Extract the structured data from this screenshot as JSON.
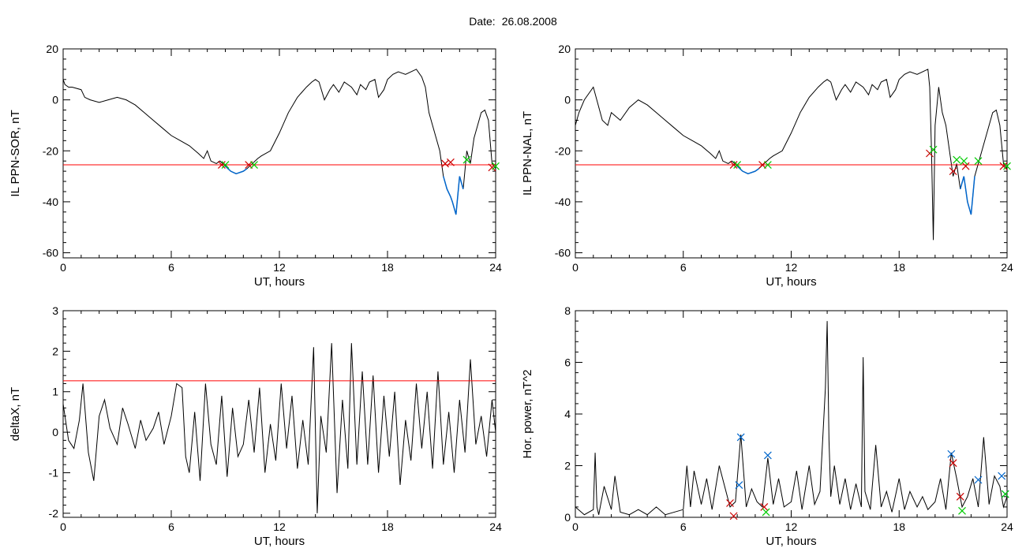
{
  "header": {
    "date_label": "Date:",
    "date_value": "26.08.2008"
  },
  "colors": {
    "signal": "#000000",
    "threshold": "#ff0000",
    "below_threshold": "#0066cc",
    "marker_start": "#cc0000",
    "marker_end": "#00cc00",
    "marker_peak": "#0066cc"
  },
  "chart_data": [
    {
      "type": "line",
      "xlabel": "UT, hours",
      "ylabel": "IL PPN-SOR, nT",
      "xlim": [
        0,
        24
      ],
      "ylim": [
        -62,
        20
      ],
      "xticks": [
        0,
        6,
        12,
        18,
        24
      ],
      "yticks": [
        -60,
        -40,
        -20,
        0,
        20
      ],
      "threshold": -25.5,
      "series": [
        {
          "x": [
            0,
            0.1,
            0.3,
            0.5,
            1.0,
            1.2,
            1.5,
            2.0,
            2.5,
            3.0,
            3.5,
            4.0,
            4.5,
            5.0,
            5.5,
            6.0,
            6.5,
            7.0,
            7.5,
            7.8,
            8.0,
            8.2,
            8.5,
            8.7,
            9.0,
            9.3,
            9.6,
            10.0,
            10.2,
            10.5,
            10.8,
            11.0,
            11.5,
            12.0,
            12.5,
            13.0,
            13.5,
            13.8,
            14.0,
            14.2,
            14.5,
            14.8,
            15.0,
            15.3,
            15.6,
            16.0,
            16.3,
            16.5,
            16.8,
            17.0,
            17.3,
            17.5,
            17.8,
            18.0,
            18.3,
            18.6,
            19.0,
            19.3,
            19.6,
            19.9,
            20.1,
            20.3,
            20.5,
            20.7,
            20.9,
            21.1,
            21.3,
            21.5,
            21.6,
            21.8,
            22.0,
            22.2,
            22.4,
            22.6,
            22.8,
            23.0,
            23.2,
            23.4,
            23.6,
            23.8,
            24.0
          ],
          "y": [
            8,
            6,
            5,
            5,
            4,
            1,
            0,
            -1,
            0,
            1,
            0,
            -2,
            -5,
            -8,
            -11,
            -14,
            -16,
            -18,
            -21,
            -23,
            -20,
            -24,
            -25,
            -24,
            -26,
            -28,
            -29,
            -28,
            -27,
            -25,
            -23,
            -22,
            -20,
            -13,
            -5,
            1,
            5,
            7,
            8,
            7,
            0,
            4,
            6,
            3,
            7,
            5,
            2,
            6,
            4,
            7,
            8,
            1,
            4,
            8,
            10,
            11,
            10,
            11,
            12,
            9,
            5,
            -5,
            -10,
            -15,
            -20,
            -30,
            -35,
            -38,
            -40,
            -45,
            -30,
            -35,
            -20,
            -25,
            -15,
            -10,
            -5,
            -4,
            -8,
            -25,
            -27
          ]
        }
      ],
      "markers": {
        "start": [
          {
            "x": 8.8,
            "y": -25.5
          },
          {
            "x": 10.3,
            "y": -25.5
          },
          {
            "x": 21.2,
            "y": -25
          },
          {
            "x": 21.5,
            "y": -24.5
          },
          {
            "x": 23.8,
            "y": -26.5
          }
        ],
        "end": [
          {
            "x": 9.0,
            "y": -25.5
          },
          {
            "x": 10.6,
            "y": -25.5
          },
          {
            "x": 22.4,
            "y": -23.5
          },
          {
            "x": 24.0,
            "y": -26
          }
        ]
      }
    },
    {
      "type": "line",
      "xlabel": "UT, hours",
      "ylabel": "IL PPN-NAL, nT",
      "xlim": [
        0,
        24
      ],
      "ylim": [
        -62,
        20
      ],
      "xticks": [
        0,
        6,
        12,
        18,
        24
      ],
      "yticks": [
        -60,
        -40,
        -20,
        0,
        20
      ],
      "threshold": -25.5,
      "series": [
        {
          "x": [
            0,
            0.2,
            0.5,
            1.0,
            1.5,
            1.8,
            2.0,
            2.5,
            3.0,
            3.5,
            4.0,
            4.5,
            5.0,
            5.5,
            6.0,
            6.5,
            7.0,
            7.5,
            7.8,
            8.0,
            8.2,
            8.5,
            8.7,
            9.0,
            9.3,
            9.6,
            10.0,
            10.2,
            10.5,
            10.8,
            11.0,
            11.5,
            12.0,
            12.5,
            13.0,
            13.5,
            13.8,
            14.0,
            14.2,
            14.5,
            14.8,
            15.0,
            15.3,
            15.6,
            16.0,
            16.3,
            16.5,
            16.8,
            17.0,
            17.3,
            17.5,
            17.8,
            18.0,
            18.3,
            18.6,
            19.0,
            19.3,
            19.6,
            19.7,
            19.8,
            19.9,
            20.0,
            20.2,
            20.4,
            20.6,
            20.8,
            21.0,
            21.2,
            21.4,
            21.6,
            21.8,
            22.0,
            22.2,
            22.4,
            22.6,
            22.8,
            23.0,
            23.2,
            23.4,
            23.6,
            23.8,
            24.0
          ],
          "y": [
            -10,
            -5,
            0,
            5,
            -8,
            -10,
            -5,
            -8,
            -3,
            0,
            -2,
            -5,
            -8,
            -11,
            -14,
            -16,
            -18,
            -21,
            -23,
            -20,
            -24,
            -25,
            -24,
            -26,
            -28,
            -29,
            -28,
            -27,
            -25,
            -23,
            -22,
            -20,
            -13,
            -5,
            1,
            5,
            7,
            8,
            7,
            0,
            4,
            6,
            3,
            7,
            5,
            2,
            6,
            4,
            7,
            8,
            1,
            4,
            8,
            10,
            11,
            10,
            11,
            12,
            5,
            -20,
            -55,
            -10,
            5,
            -5,
            -10,
            -20,
            -30,
            -25,
            -35,
            -30,
            -40,
            -45,
            -30,
            -25,
            -20,
            -15,
            -10,
            -5,
            -4,
            -10,
            -25,
            -27
          ]
        }
      ],
      "markers": {
        "start": [
          {
            "x": 8.8,
            "y": -25.5
          },
          {
            "x": 10.4,
            "y": -25.5
          },
          {
            "x": 19.7,
            "y": -21
          },
          {
            "x": 21.0,
            "y": -28
          },
          {
            "x": 21.7,
            "y": -26
          },
          {
            "x": 23.8,
            "y": -26
          }
        ],
        "end": [
          {
            "x": 9.0,
            "y": -25.5
          },
          {
            "x": 10.7,
            "y": -25.5
          },
          {
            "x": 19.9,
            "y": -19.5
          },
          {
            "x": 21.2,
            "y": -23.5
          },
          {
            "x": 21.6,
            "y": -24
          },
          {
            "x": 22.4,
            "y": -24
          },
          {
            "x": 24.0,
            "y": -26
          }
        ]
      }
    },
    {
      "type": "line",
      "xlabel": "UT, hours",
      "ylabel": "deltaX, nT",
      "xlim": [
        0,
        24
      ],
      "ylim": [
        -2.1,
        3
      ],
      "xticks": [
        0,
        6,
        12,
        18,
        24
      ],
      "yticks": [
        -2,
        -1,
        0,
        1,
        2,
        3
      ],
      "threshold": 1.27,
      "series": [
        {
          "x": [
            0,
            0.3,
            0.6,
            0.9,
            1.1,
            1.4,
            1.7,
            2.0,
            2.3,
            2.6,
            3.0,
            3.3,
            3.6,
            4.0,
            4.3,
            4.6,
            5.0,
            5.3,
            5.6,
            6.0,
            6.3,
            6.6,
            6.8,
            7.0,
            7.3,
            7.6,
            7.9,
            8.2,
            8.5,
            8.8,
            9.1,
            9.4,
            9.7,
            10.0,
            10.3,
            10.6,
            10.9,
            11.2,
            11.5,
            11.8,
            12.1,
            12.4,
            12.7,
            13.0,
            13.3,
            13.6,
            13.9,
            14.1,
            14.3,
            14.6,
            14.9,
            15.2,
            15.5,
            15.8,
            16.0,
            16.3,
            16.6,
            16.9,
            17.2,
            17.5,
            17.8,
            18.1,
            18.4,
            18.7,
            19.0,
            19.3,
            19.6,
            19.9,
            20.2,
            20.5,
            20.8,
            21.1,
            21.4,
            21.7,
            22.0,
            22.3,
            22.6,
            22.9,
            23.2,
            23.5,
            23.8,
            24.0
          ],
          "y": [
            0.7,
            -0.2,
            -0.4,
            0.3,
            1.2,
            -0.5,
            -1.2,
            0.4,
            0.8,
            0.1,
            -0.3,
            0.6,
            0.2,
            -0.4,
            0.3,
            -0.2,
            0.1,
            0.5,
            -0.3,
            0.4,
            1.2,
            1.1,
            -0.6,
            -1.0,
            0.5,
            -1.2,
            1.2,
            -0.3,
            -0.8,
            0.9,
            -1.1,
            0.6,
            -0.6,
            -0.3,
            0.8,
            -0.5,
            1.1,
            -1.0,
            0.2,
            -0.7,
            1.2,
            -0.4,
            0.9,
            -0.9,
            0.3,
            -0.8,
            2.1,
            -2.0,
            0.4,
            -0.5,
            2.2,
            -1.5,
            0.8,
            -0.9,
            2.2,
            -0.8,
            1.5,
            -0.8,
            1.4,
            -1.0,
            0.9,
            -0.6,
            1.0,
            -1.3,
            0.3,
            -0.7,
            1.2,
            -0.4,
            1.0,
            -0.9,
            1.5,
            -0.8,
            0.5,
            -1.0,
            0.8,
            -0.5,
            1.8,
            -0.3,
            0.4,
            -0.6,
            0.8,
            0.0
          ]
        }
      ]
    },
    {
      "type": "line",
      "xlabel": "UT, hours",
      "ylabel": "Hor. power, nT^2",
      "xlim": [
        0,
        24
      ],
      "ylim": [
        0,
        8
      ],
      "xticks": [
        0,
        6,
        12,
        18,
        24
      ],
      "yticks": [
        0,
        2,
        4,
        6,
        8
      ],
      "series": [
        {
          "x": [
            0,
            0.5,
            1.0,
            1.1,
            1.2,
            1.3,
            1.6,
            2.0,
            2.2,
            2.5,
            3.0,
            3.5,
            4.0,
            4.5,
            5.0,
            5.5,
            6.0,
            6.2,
            6.4,
            6.6,
            7.0,
            7.3,
            7.6,
            8.0,
            8.3,
            8.6,
            8.9,
            9.2,
            9.5,
            9.8,
            10.1,
            10.4,
            10.7,
            11.0,
            11.3,
            11.6,
            12.0,
            12.3,
            12.6,
            13.0,
            13.3,
            13.6,
            13.9,
            14.0,
            14.1,
            14.2,
            14.4,
            14.7,
            15.0,
            15.3,
            15.6,
            15.9,
            16.0,
            16.1,
            16.4,
            16.7,
            17.0,
            17.3,
            17.6,
            18.0,
            18.3,
            18.6,
            19.0,
            19.3,
            19.6,
            20.0,
            20.3,
            20.6,
            20.9,
            21.2,
            21.5,
            21.8,
            22.1,
            22.4,
            22.7,
            23.0,
            23.3,
            23.6,
            23.8,
            24.0
          ],
          "y": [
            0.4,
            0.1,
            0.3,
            2.5,
            0.4,
            0.1,
            1.2,
            0.3,
            1.6,
            0.2,
            0.1,
            0.3,
            0.1,
            0.4,
            0.1,
            0.2,
            0.3,
            2.0,
            0.4,
            1.8,
            0.5,
            1.5,
            0.3,
            2.0,
            1.2,
            0.4,
            0.6,
            3.2,
            0.4,
            1.1,
            0.6,
            0.4,
            2.3,
            0.5,
            1.5,
            0.4,
            0.6,
            1.8,
            0.3,
            2.0,
            0.5,
            1.0,
            5.0,
            7.6,
            3.0,
            0.8,
            2.0,
            0.5,
            1.5,
            0.3,
            1.3,
            0.4,
            6.2,
            1.0,
            0.3,
            2.8,
            0.4,
            1.0,
            0.2,
            1.5,
            0.3,
            1.0,
            0.4,
            0.8,
            0.3,
            0.6,
            1.5,
            0.3,
            2.5,
            1.5,
            0.4,
            0.8,
            1.5,
            0.4,
            3.1,
            0.5,
            1.6,
            1.2,
            0.4,
            0.8
          ]
        }
      ],
      "markers": {
        "peak": [
          {
            "x": 9.2,
            "y": 3.1
          },
          {
            "x": 10.7,
            "y": 2.4
          },
          {
            "x": 20.9,
            "y": 2.45
          },
          {
            "x": 22.4,
            "y": 1.45
          },
          {
            "x": 23.7,
            "y": 1.6
          },
          {
            "x": 9.1,
            "y": 1.25
          },
          {
            "x": 23.9,
            "y": 0.9
          }
        ],
        "start": [
          {
            "x": 8.6,
            "y": 0.55
          },
          {
            "x": 8.8,
            "y": 0.05
          },
          {
            "x": 10.5,
            "y": 0.4
          },
          {
            "x": 21.0,
            "y": 2.1
          },
          {
            "x": 21.4,
            "y": 0.8
          }
        ],
        "end": [
          {
            "x": 10.6,
            "y": 0.2
          },
          {
            "x": 21.5,
            "y": 0.25
          },
          {
            "x": 23.9,
            "y": 0.9
          }
        ]
      }
    }
  ]
}
